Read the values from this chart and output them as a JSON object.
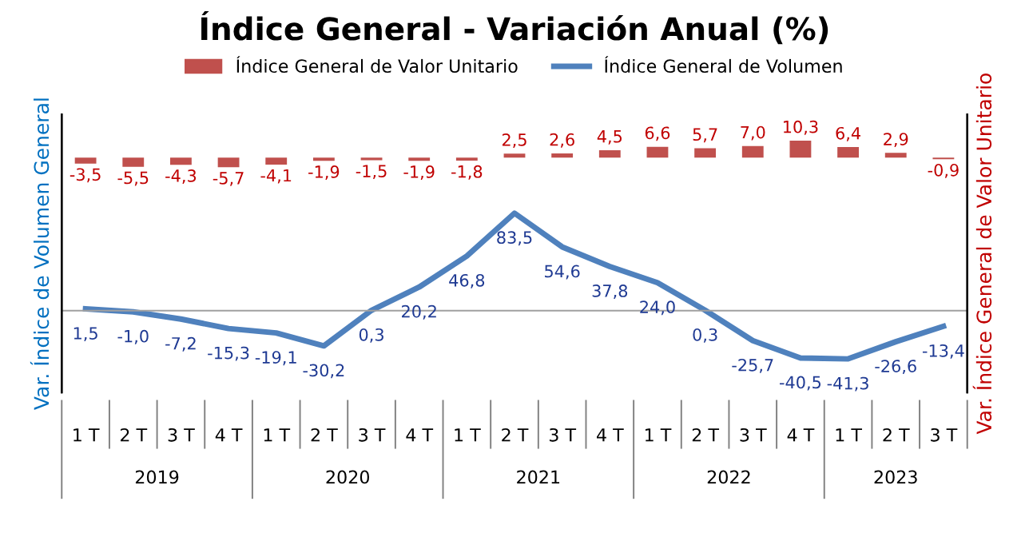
{
  "chart_data": {
    "type": "line",
    "title": "Índice General - Variación Anual (%)",
    "ylabel": "Var. Índice de Volumen General",
    "y2label": "Var. Índice General de Valor Unitario",
    "categories": [
      "1 T",
      "2 T",
      "3 T",
      "4 T",
      "1 T",
      "2 T",
      "3 T",
      "4 T",
      "1 T",
      "2 T",
      "3 T",
      "4 T",
      "1 T",
      "2 T",
      "3 T",
      "4 T",
      "1 T",
      "2 T",
      "3 T"
    ],
    "annotations": [
      "2019",
      "2020",
      "2021",
      "2022",
      "2023"
    ],
    "series": [
      {
        "name": "Índice General de Valor Unitario",
        "type": "bar",
        "axis": "y2",
        "color": "#c0504d",
        "values": [
          -3.5,
          -5.5,
          -4.3,
          -5.7,
          -4.1,
          -1.9,
          -1.5,
          -1.9,
          -1.8,
          2.5,
          2.6,
          4.5,
          6.6,
          5.7,
          7.0,
          10.3,
          6.4,
          2.9,
          -0.9
        ],
        "value_labels": [
          "-3,5",
          "-5,5",
          "-4,3",
          "-5,7",
          "-4,1",
          "-1,9",
          "-1,5",
          "-1,9",
          "-1,8",
          "2,5",
          "2,6",
          "4,5",
          "6,6",
          "5,7",
          "7,0",
          "10,3",
          "6,4",
          "2,9",
          "-0,9"
        ]
      },
      {
        "name": "Índice General de Volumen",
        "color": "#4f81bd",
        "values": [
          1.5,
          -1.0,
          -7.2,
          -15.3,
          -19.1,
          -30.2,
          0.3,
          20.2,
          46.8,
          83.5,
          54.6,
          37.8,
          24.0,
          0.3,
          -25.7,
          -40.5,
          -41.3,
          -26.6,
          -13.4
        ],
        "value_labels": [
          "1,5",
          "-1,0",
          "-7,2",
          "-15,3",
          "-19,1",
          "-30,2",
          "0,3",
          "20,2",
          "46,8",
          "83,5",
          "54,6",
          "37,8",
          "24,0",
          "0,3",
          "-25,7",
          "-40,5",
          "-41,3",
          "-26,6",
          "-13,4"
        ]
      }
    ],
    "ylim": [
      -70,
      168
    ],
    "y2lim": [
      -141,
      26
    ],
    "legend": "top",
    "grid": false
  }
}
